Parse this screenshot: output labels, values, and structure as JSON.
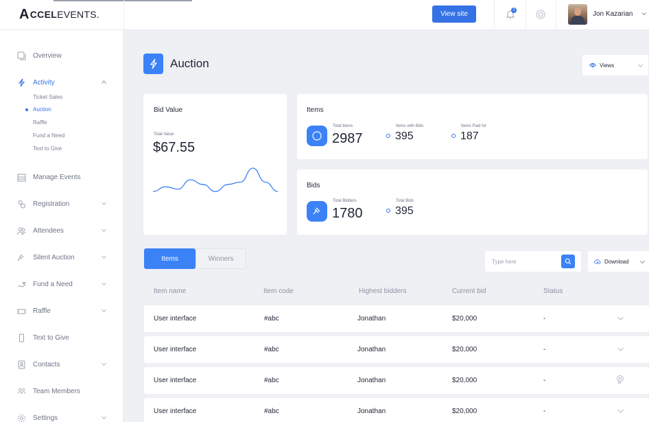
{
  "brand": {
    "logo_letter": "A",
    "logo_bold": "CCEL",
    "logo_rest": "EVENTS."
  },
  "header": {
    "view_site": "View site",
    "notification_count": "2",
    "user_name": "Jon Kazarian"
  },
  "sidebar": {
    "overview": "Overview",
    "activity": "Activity",
    "activity_sub": [
      "Ticket Sales",
      "Auction",
      "Raffle",
      "Fund a Need",
      "Text to Give"
    ],
    "manage_events": "Manage Events",
    "registration": "Registration",
    "attendees": "Attendees",
    "silent_auction": "Silent Auction",
    "fund_a_need": "Fund a Need",
    "raffle": "Raffle",
    "text_to_give": "Text to Give",
    "contacts": "Contacts",
    "team_members": "Team Members",
    "settings": "Settings"
  },
  "page": {
    "title": "Auction",
    "views_label": "Views"
  },
  "bid_value": {
    "title": "Bid Value",
    "total_label": "Total Value",
    "total_value": "$67.55",
    "sparkline": [
      2,
      4,
      3,
      7,
      5,
      2,
      5,
      6,
      12,
      6,
      2
    ]
  },
  "items": {
    "title": "Items",
    "total_label": "Total Items",
    "total_value": "2987",
    "with_bids_label": "Items with Bids",
    "with_bids_value": "395",
    "paid_label": "Items Paid for",
    "paid_value": "187"
  },
  "bids": {
    "title": "Bids",
    "bidders_label": "Total Bidders",
    "bidders_value": "1780",
    "total_label": "Total Bids",
    "total_value": "395"
  },
  "tabs": {
    "items": "Items",
    "winners": "Winners"
  },
  "search": {
    "placeholder": "Type here"
  },
  "download": {
    "label": "Download"
  },
  "table": {
    "columns": [
      "Item name",
      "Item code",
      "Highest bidders",
      "Current bid",
      "Status"
    ],
    "rows": [
      [
        "User interface",
        "#abc",
        "Jonathan",
        "$20,000",
        "-"
      ],
      [
        "User interface",
        "#abc",
        "Jonathan",
        "$20,000",
        "-"
      ],
      [
        "User interface",
        "#abc",
        "Jonathan",
        "$20,000",
        "-"
      ],
      [
        "User interface",
        "#abc",
        "Jonathan",
        "$20,000",
        "-"
      ]
    ]
  },
  "colors": {
    "accent": "#3472e5",
    "accent_light": "#3b82f6",
    "background": "#eef0f4"
  }
}
